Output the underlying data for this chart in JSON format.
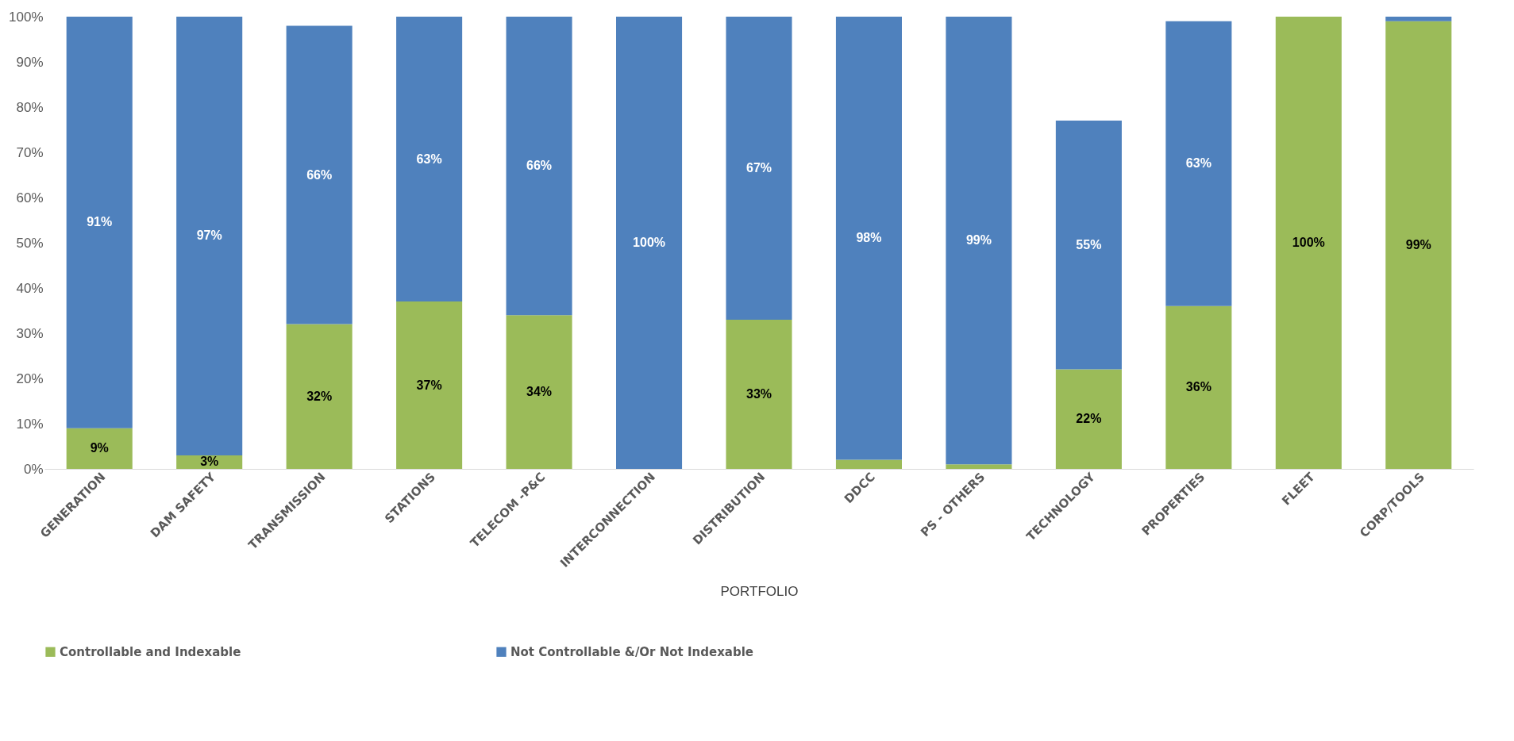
{
  "chart_data": {
    "type": "bar",
    "stacked": true,
    "xlabel": "PORTFOLIO",
    "categories": [
      "GENERATION",
      "DAM SAFETY",
      "TRANSMISSION",
      "STATIONS",
      "TELECOM -P&C",
      "INTERCONNECTION",
      "DISTRIBUTION",
      "DDCC",
      "PS - OTHERS",
      "TECHNOLOGY",
      "PROPERTIES",
      "FLEET",
      "CORP/TOOLS"
    ],
    "series": [
      {
        "name": "Controllable and Indexable",
        "color": "#9bbb59",
        "values": [
          9,
          3,
          32,
          37,
          34,
          0,
          33,
          2,
          1,
          22,
          36,
          100,
          99
        ],
        "value_labels": [
          "9%",
          "3%",
          "32%",
          "37%",
          "34%",
          null,
          "33%",
          null,
          null,
          "22%",
          "36%",
          "100%",
          "99%"
        ]
      },
      {
        "name": "Not Controllable &/Or Not Indexable",
        "color": "#4f81bd",
        "values": [
          91,
          97,
          66,
          63,
          66,
          100,
          67,
          98,
          99,
          55,
          63,
          0,
          1
        ],
        "value_labels": [
          "91%",
          "97%",
          "66%",
          "63%",
          "66%",
          "100%",
          "67%",
          "98%",
          "99%",
          "55%",
          "63%",
          null,
          null
        ]
      }
    ],
    "ylim": [
      0,
      100
    ],
    "yticks": [
      {
        "value": 0,
        "label": "0%"
      },
      {
        "value": 10,
        "label": "10%"
      },
      {
        "value": 20,
        "label": "20%"
      },
      {
        "value": 30,
        "label": "30%"
      },
      {
        "value": 40,
        "label": "40%"
      },
      {
        "value": 50,
        "label": "50%"
      },
      {
        "value": 60,
        "label": "60%"
      },
      {
        "value": 70,
        "label": "70%"
      },
      {
        "value": 80,
        "label": "80%"
      },
      {
        "value": 90,
        "label": "90%"
      },
      {
        "value": 100,
        "label": "100%"
      }
    ],
    "grid": false,
    "legend": "bottom"
  }
}
